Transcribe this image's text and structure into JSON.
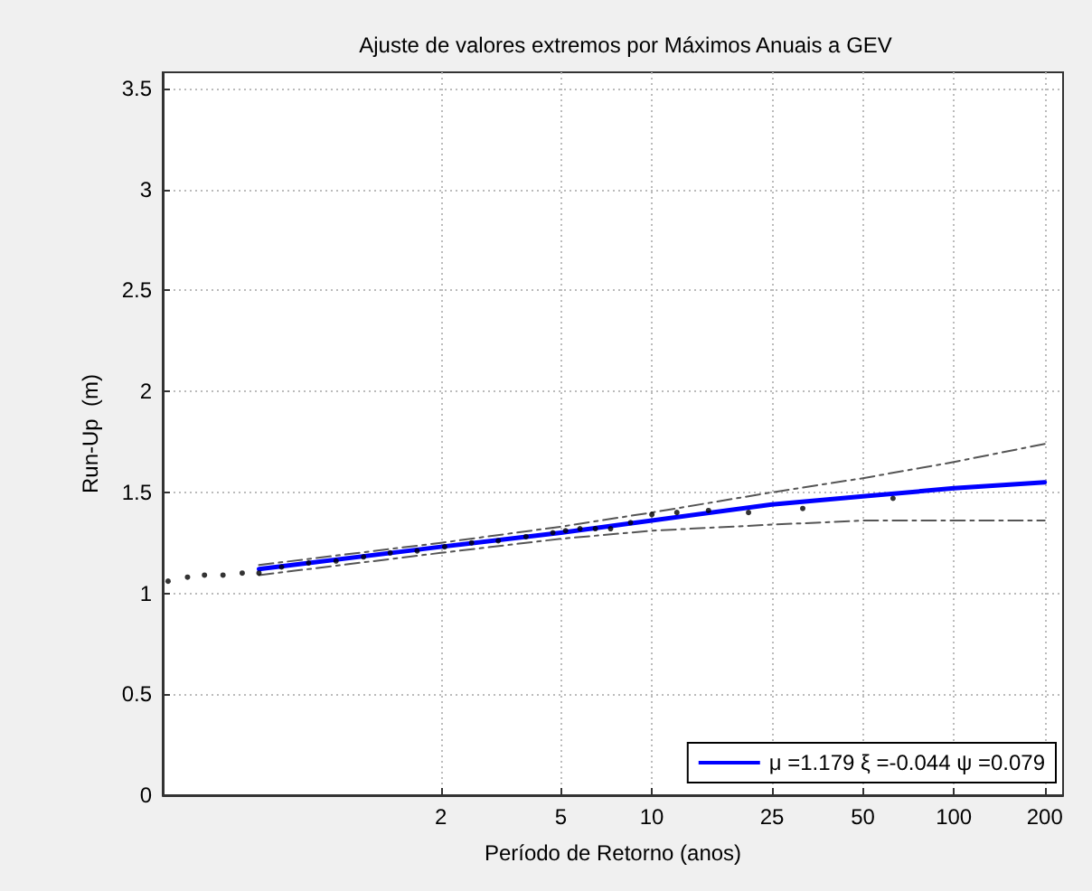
{
  "chart_data": {
    "type": "line",
    "title": "Ajuste de valores extremos por Máximos Anuais a GEV",
    "xlabel": "Período de Retorno (anos)",
    "ylabel": "Run-Up  (m)",
    "log": "x",
    "grid": true,
    "legend": "bottom right",
    "xlim": [
      0.24,
      230
    ],
    "xticks": [
      2,
      5,
      10,
      25,
      50,
      100,
      200
    ],
    "ylim": [
      0,
      3.58
    ],
    "yticks": [
      0,
      0.5,
      1,
      1.5,
      2,
      2.5,
      3,
      3.5
    ],
    "series": [
      {
        "type": "scatter",
        "marker": "circle",
        "color": "#000000",
        "x": [
          0.25,
          0.29,
          0.33,
          0.38,
          0.44,
          0.5,
          0.594,
          0.73,
          0.9,
          1.11,
          1.36,
          1.67,
          2.06,
          2.53,
          3.1,
          3.83,
          4.7,
          5.18,
          5.78,
          6.5,
          7.3,
          8.5,
          10.0,
          12.1,
          15.4,
          20.9,
          31.6,
          62.9
        ],
        "values": [
          1.06,
          1.08,
          1.09,
          1.09,
          1.1,
          1.1,
          1.13,
          1.15,
          1.16,
          1.18,
          1.2,
          1.21,
          1.23,
          1.25,
          1.26,
          1.28,
          1.3,
          1.31,
          1.32,
          1.32,
          1.32,
          1.35,
          1.39,
          1.4,
          1.41,
          1.4,
          1.42,
          1.47
        ]
      },
      {
        "marker": "none",
        "line_style": "solid",
        "name": "μ =1.179 ξ =-0.044 ψ =0.079",
        "color": "#0000ff",
        "x": [
          0.5,
          2,
          5,
          10,
          25,
          50,
          100,
          200
        ],
        "values": [
          1.12,
          1.23,
          1.3,
          1.36,
          1.44,
          1.48,
          1.52,
          1.55
        ]
      },
      {
        "marker": "none",
        "line_style": "dashed",
        "color": "#555555",
        "x": [
          0.5,
          2,
          5,
          10,
          25,
          50,
          100,
          200
        ],
        "values": [
          1.14,
          1.25,
          1.33,
          1.4,
          1.5,
          1.57,
          1.65,
          1.74
        ]
      },
      {
        "marker": "none",
        "line_style": "dashed",
        "color": "#555555",
        "x": [
          0.5,
          2,
          5,
          10,
          25,
          50,
          100,
          200
        ],
        "values": [
          1.09,
          1.2,
          1.27,
          1.31,
          1.34,
          1.36,
          1.36,
          1.36
        ]
      }
    ]
  }
}
